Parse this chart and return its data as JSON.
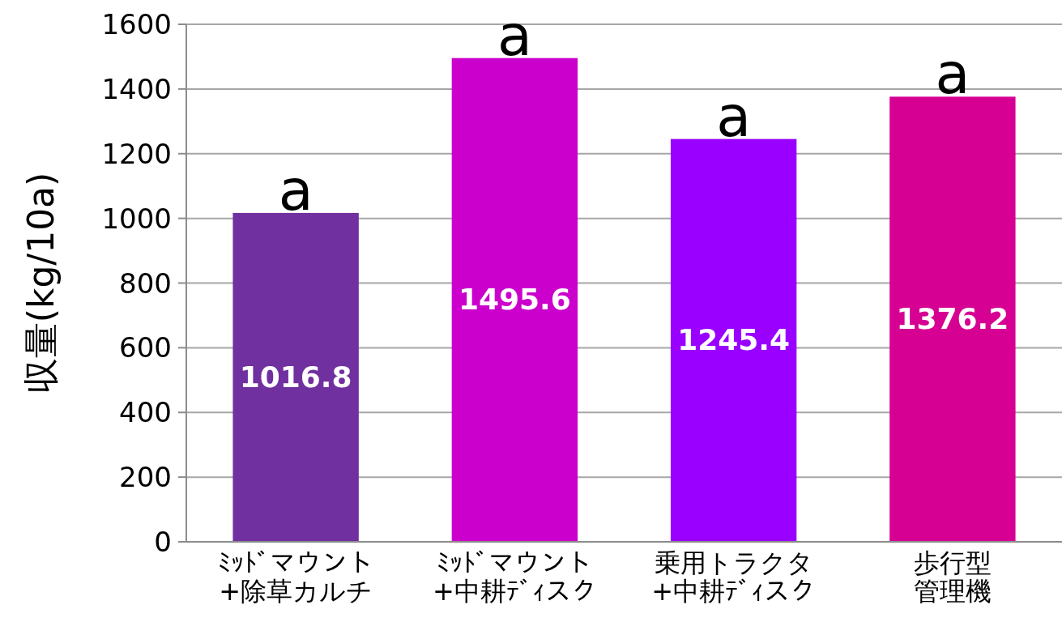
{
  "chart_data": {
    "type": "bar",
    "ylabel": "収量(kg/10a)",
    "categories": [
      "ﾐｯﾄﾞマウント+除草カルチ",
      "ﾐｯﾄﾞマウント+中耕ﾃﾞｨスク",
      "乗用トラクタ+中耕ﾃﾞｨスク",
      "歩行型管理機"
    ],
    "values": [
      1016.8,
      1495.6,
      1245.4,
      1376.2
    ],
    "colors": [
      "#7030a0",
      "#cc00cc",
      "#9900ff",
      "#d60093"
    ],
    "ylim": [
      0,
      1600
    ],
    "yticks": [
      0,
      200,
      400,
      600,
      800,
      1000,
      1200,
      1400,
      1600
    ],
    "grid": "y",
    "data_labels": true,
    "annotations": [
      {
        "text": "a",
        "x": "ﾐｯﾄﾞマウント+除草カルチ",
        "y": 1016.8
      },
      {
        "text": "a",
        "x": "ﾐｯﾄﾞマウント+中耕ﾃﾞｨスク",
        "y": 1495.6
      },
      {
        "text": "a",
        "x": "乗用トラクタ+中耕ﾃﾞｨスク",
        "y": 1245.4
      },
      {
        "text": "a",
        "x": "歩行型管理機",
        "y": 1376.2
      }
    ]
  }
}
